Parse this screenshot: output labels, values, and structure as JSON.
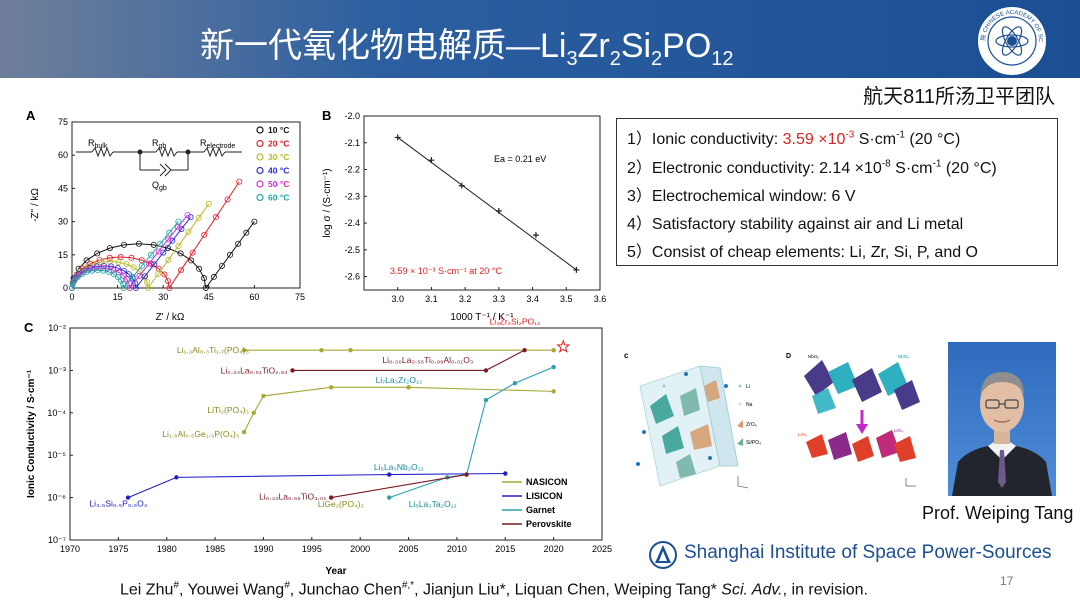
{
  "header": {
    "title_main": "新一代氧化物电解质—Li",
    "title_parts": [
      "3",
      "Zr",
      "2",
      "Si",
      "2",
      "PO",
      "12"
    ],
    "emblem_text": "中国科学院 CHINESE ACADEMY OF SCIENCES",
    "team": "航天811所汤卫平团队"
  },
  "panelA": {
    "letter": "A",
    "xlabel": "Z' / kΩ",
    "ylabel": "-Z'' / kΩ",
    "xticks": [
      "0",
      "15",
      "30",
      "45",
      "60",
      "75"
    ],
    "yticks": [
      "0",
      "15",
      "30",
      "45",
      "60",
      "75"
    ],
    "circuit": {
      "rbulk": "R",
      "rbulk_sub": "bulk",
      "rgb": "R",
      "rgb_sub": "gb",
      "relec": "R",
      "relec_sub": "electrode",
      "qgb": "Q",
      "qgb_sub": "gb"
    },
    "legend": [
      {
        "label": "10 °C",
        "color": "#111111"
      },
      {
        "label": "20 °C",
        "color": "#e0202a"
      },
      {
        "label": "30 °C",
        "color": "#b8b82a"
      },
      {
        "label": "40 °C",
        "color": "#2a2ad8"
      },
      {
        "label": "50 °C",
        "color": "#d42ad4"
      },
      {
        "label": "60 °C",
        "color": "#20a8a8"
      }
    ]
  },
  "panelB": {
    "letter": "B",
    "xlabel": "1000 T⁻¹ / K⁻¹",
    "ylabel": "log σ / (S·cm⁻¹)",
    "xticks": [
      "3.0",
      "3.1",
      "3.2",
      "3.3",
      "3.4",
      "3.5",
      "3.6"
    ],
    "yticks": [
      "-2.0",
      "-2.1",
      "-2.2",
      "-2.3",
      "-2.4",
      "-2.5",
      "-2.6"
    ],
    "ea": "Ea = 0.21 eV",
    "annotation": "3.59 × 10⁻³ S·cm⁻¹ at 20 °C"
  },
  "properties": [
    {
      "num": "1）",
      "text": "Ionic conductivity: ",
      "red": "3.59 ×10",
      "red_sup": "-3",
      "tail": " S·cm",
      "tail_sup": "-1",
      "end": " (20 °C)"
    },
    {
      "num": "2）",
      "text": "Electronic conductivity: 2.14 ×10",
      "sup": "-8",
      "tail": " S·cm",
      "tail_sup": "-1",
      "end": " (20 °C)"
    },
    {
      "num": "3）",
      "text": "Electrochemical window: 6 V"
    },
    {
      "num": "4）",
      "text": "Satisfactory stability against air and Li metal"
    },
    {
      "num": "5）",
      "text": "Consist of cheap elements: Li, Zr, Si, P, and O"
    }
  ],
  "panelC": {
    "letter": "C",
    "xlabel": "Year",
    "ylabel": "Ionic Conductivity / S·cm⁻¹",
    "xticks": [
      "1970",
      "1975",
      "1980",
      "1985",
      "1990",
      "1995",
      "2000",
      "2005",
      "2010",
      "2015",
      "2020",
      "2025"
    ],
    "yticks": [
      "10⁻²",
      "10⁻³",
      "10⁻⁴",
      "10⁻⁵",
      "10⁻⁶",
      "10⁻⁷"
    ],
    "legend": [
      {
        "label": "NASICON",
        "color": "#a8a832"
      },
      {
        "label": "LISICON",
        "color": "#2020c8"
      },
      {
        "label": "Garnet",
        "color": "#2aa0b0"
      },
      {
        "label": "Perovskite",
        "color": "#7a1a24"
      }
    ],
    "labels": [
      {
        "text": "Li₃Zr₂Si₂PO₁₂",
        "color": "#d22"
      },
      {
        "text": "Li₁.₃Al₀.₃Ti₁.₇(PO₄)₃",
        "color": "#8a8a1a"
      },
      {
        "text": "Li₀.₃₀La₀.₅₆Ti₀.₉₉Al₀.₀₁O₃",
        "color": "#7a1a24"
      },
      {
        "text": "Li₀.₃₄La₀.₅₁TiO₂.₉₄",
        "color": "#7a1a24"
      },
      {
        "text": "Li₇La₃Zr₂O₁₂",
        "color": "#1a8a9a"
      },
      {
        "text": "LiTi₂(PO₄)₃",
        "color": "#8a8a1a"
      },
      {
        "text": "Li₁.₅Al₀.₅Ge₁.₅P(O₄)₃",
        "color": "#8a8a1a"
      },
      {
        "text": "Li₅La₃Nb₂O₁₂",
        "color": "#1a8a9a"
      },
      {
        "text": "Li₃.₅Si₀.₅P₀.₅O₄",
        "color": "#2020c8"
      },
      {
        "text": "Li₀.₃₄La₀.₅₆TiO₃.₀₁",
        "color": "#7a1a24"
      },
      {
        "text": "LiGe₂(PO₄)₃",
        "color": "#8a8a1a"
      },
      {
        "text": "Li₅La₃Ta₂O₁₂",
        "color": "#1a8a9a"
      }
    ]
  },
  "structures": {
    "c_letter": "c",
    "d_letter": "D",
    "c_labels": [
      "Li",
      "Na",
      "ZrO₆",
      "Si/PO₄"
    ],
    "d_labels": [
      "NbO₆",
      "NbO₆",
      "LiO₆",
      "LiO₄"
    ]
  },
  "photo_caption": "Prof. Weiping Tang",
  "footer": {
    "logo_text": "Shanghai Institute of Space Power-Sources",
    "refs_a": "Lei Zhu",
    "refs_a_sup": "#",
    "refs_b": ", Youwei Wang",
    "refs_b_sup": "#",
    "refs_c": ", Junchao Chen",
    "refs_c_sup": "#,*",
    "refs_d": ", Jianjun Liu*, Liquan Chen, Weiping Tang* ",
    "refs_journal": "Sci. Adv.",
    "refs_end": ", in revision.",
    "page": "17"
  },
  "chart_data": [
    {
      "type": "scatter",
      "title": "",
      "xlabel": "Z' / kΩ",
      "ylabel": "-Z'' / kΩ",
      "xlim": [
        0,
        75
      ],
      "ylim": [
        0,
        75
      ],
      "series": [
        {
          "name": "10 °C",
          "values": [
            [
              0,
              0
            ],
            [
              22,
              20
            ],
            [
              44,
              0
            ],
            [
              60,
              30
            ]
          ]
        },
        {
          "name": "20 °C",
          "values": [
            [
              0,
              0
            ],
            [
              16,
              14
            ],
            [
              32,
              0
            ],
            [
              55,
              48
            ]
          ]
        },
        {
          "name": "30 °C",
          "values": [
            [
              0,
              0
            ],
            [
              13,
              12
            ],
            [
              25,
              0
            ],
            [
              45,
              38
            ]
          ]
        },
        {
          "name": "40 °C",
          "values": [
            [
              0,
              0
            ],
            [
              11,
              10
            ],
            [
              21,
              0
            ],
            [
              39,
              32
            ]
          ]
        },
        {
          "name": "50 °C",
          "values": [
            [
              0,
              0
            ],
            [
              10,
              9
            ],
            [
              19,
              0
            ],
            [
              38,
              33
            ]
          ]
        },
        {
          "name": "60 °C",
          "values": [
            [
              0,
              0
            ],
            [
              9,
              8
            ],
            [
              17,
              0
            ],
            [
              35,
              30
            ]
          ]
        }
      ]
    },
    {
      "type": "line",
      "title": "",
      "xlabel": "1000 T⁻¹ / K⁻¹",
      "ylabel": "log σ / (S·cm⁻¹)",
      "xlim": [
        2.9,
        3.6
      ],
      "ylim": [
        -2.65,
        -2.0
      ],
      "x": [
        3.0,
        3.1,
        3.19,
        3.3,
        3.41,
        3.53
      ],
      "values": [
        -2.08,
        -2.165,
        -2.26,
        -2.355,
        -2.445,
        -2.575
      ]
    },
    {
      "type": "line",
      "title": "",
      "xlabel": "Year",
      "ylabel": "Ionic Conductivity / S·cm⁻¹",
      "xlim": [
        1970,
        2025
      ],
      "ylim": [
        1e-07,
        0.01
      ],
      "log_y": true,
      "series": [
        {
          "name": "NASICON",
          "points": [
            [
              1988,
              3.5e-05
            ],
            [
              1989,
              0.0001
            ],
            [
              1990,
              0.00025
            ],
            [
              1997,
              0.0004
            ],
            [
              2005,
              0.0004
            ],
            [
              2020,
              0.00032
            ]
          ]
        },
        {
          "name": "NASICON",
          "points": [
            [
              1988,
              0.003
            ],
            [
              1996,
              0.003
            ],
            [
              1999,
              0.003
            ],
            [
              2020,
              0.003
            ]
          ]
        },
        {
          "name": "LISICON",
          "points": [
            [
              1976,
              1e-06
            ],
            [
              1981,
              3e-06
            ],
            [
              2003,
              3.5e-06
            ],
            [
              2015,
              3.7e-06
            ]
          ]
        },
        {
          "name": "Garnet",
          "points": [
            [
              2003,
              1e-06
            ],
            [
              2009,
              3e-06
            ],
            [
              2011,
              3.5e-06
            ],
            [
              2013,
              0.0002
            ],
            [
              2016,
              0.0005
            ],
            [
              2020,
              0.0012
            ]
          ]
        },
        {
          "name": "Perovskite",
          "points": [
            [
              1993,
              0.001
            ],
            [
              2013,
              0.001
            ],
            [
              2017,
              0.003
            ]
          ]
        },
        {
          "name": "Perovskite",
          "points": [
            [
              1997,
              1e-06
            ],
            [
              2011,
              3.5e-06
            ]
          ]
        }
      ]
    }
  ]
}
